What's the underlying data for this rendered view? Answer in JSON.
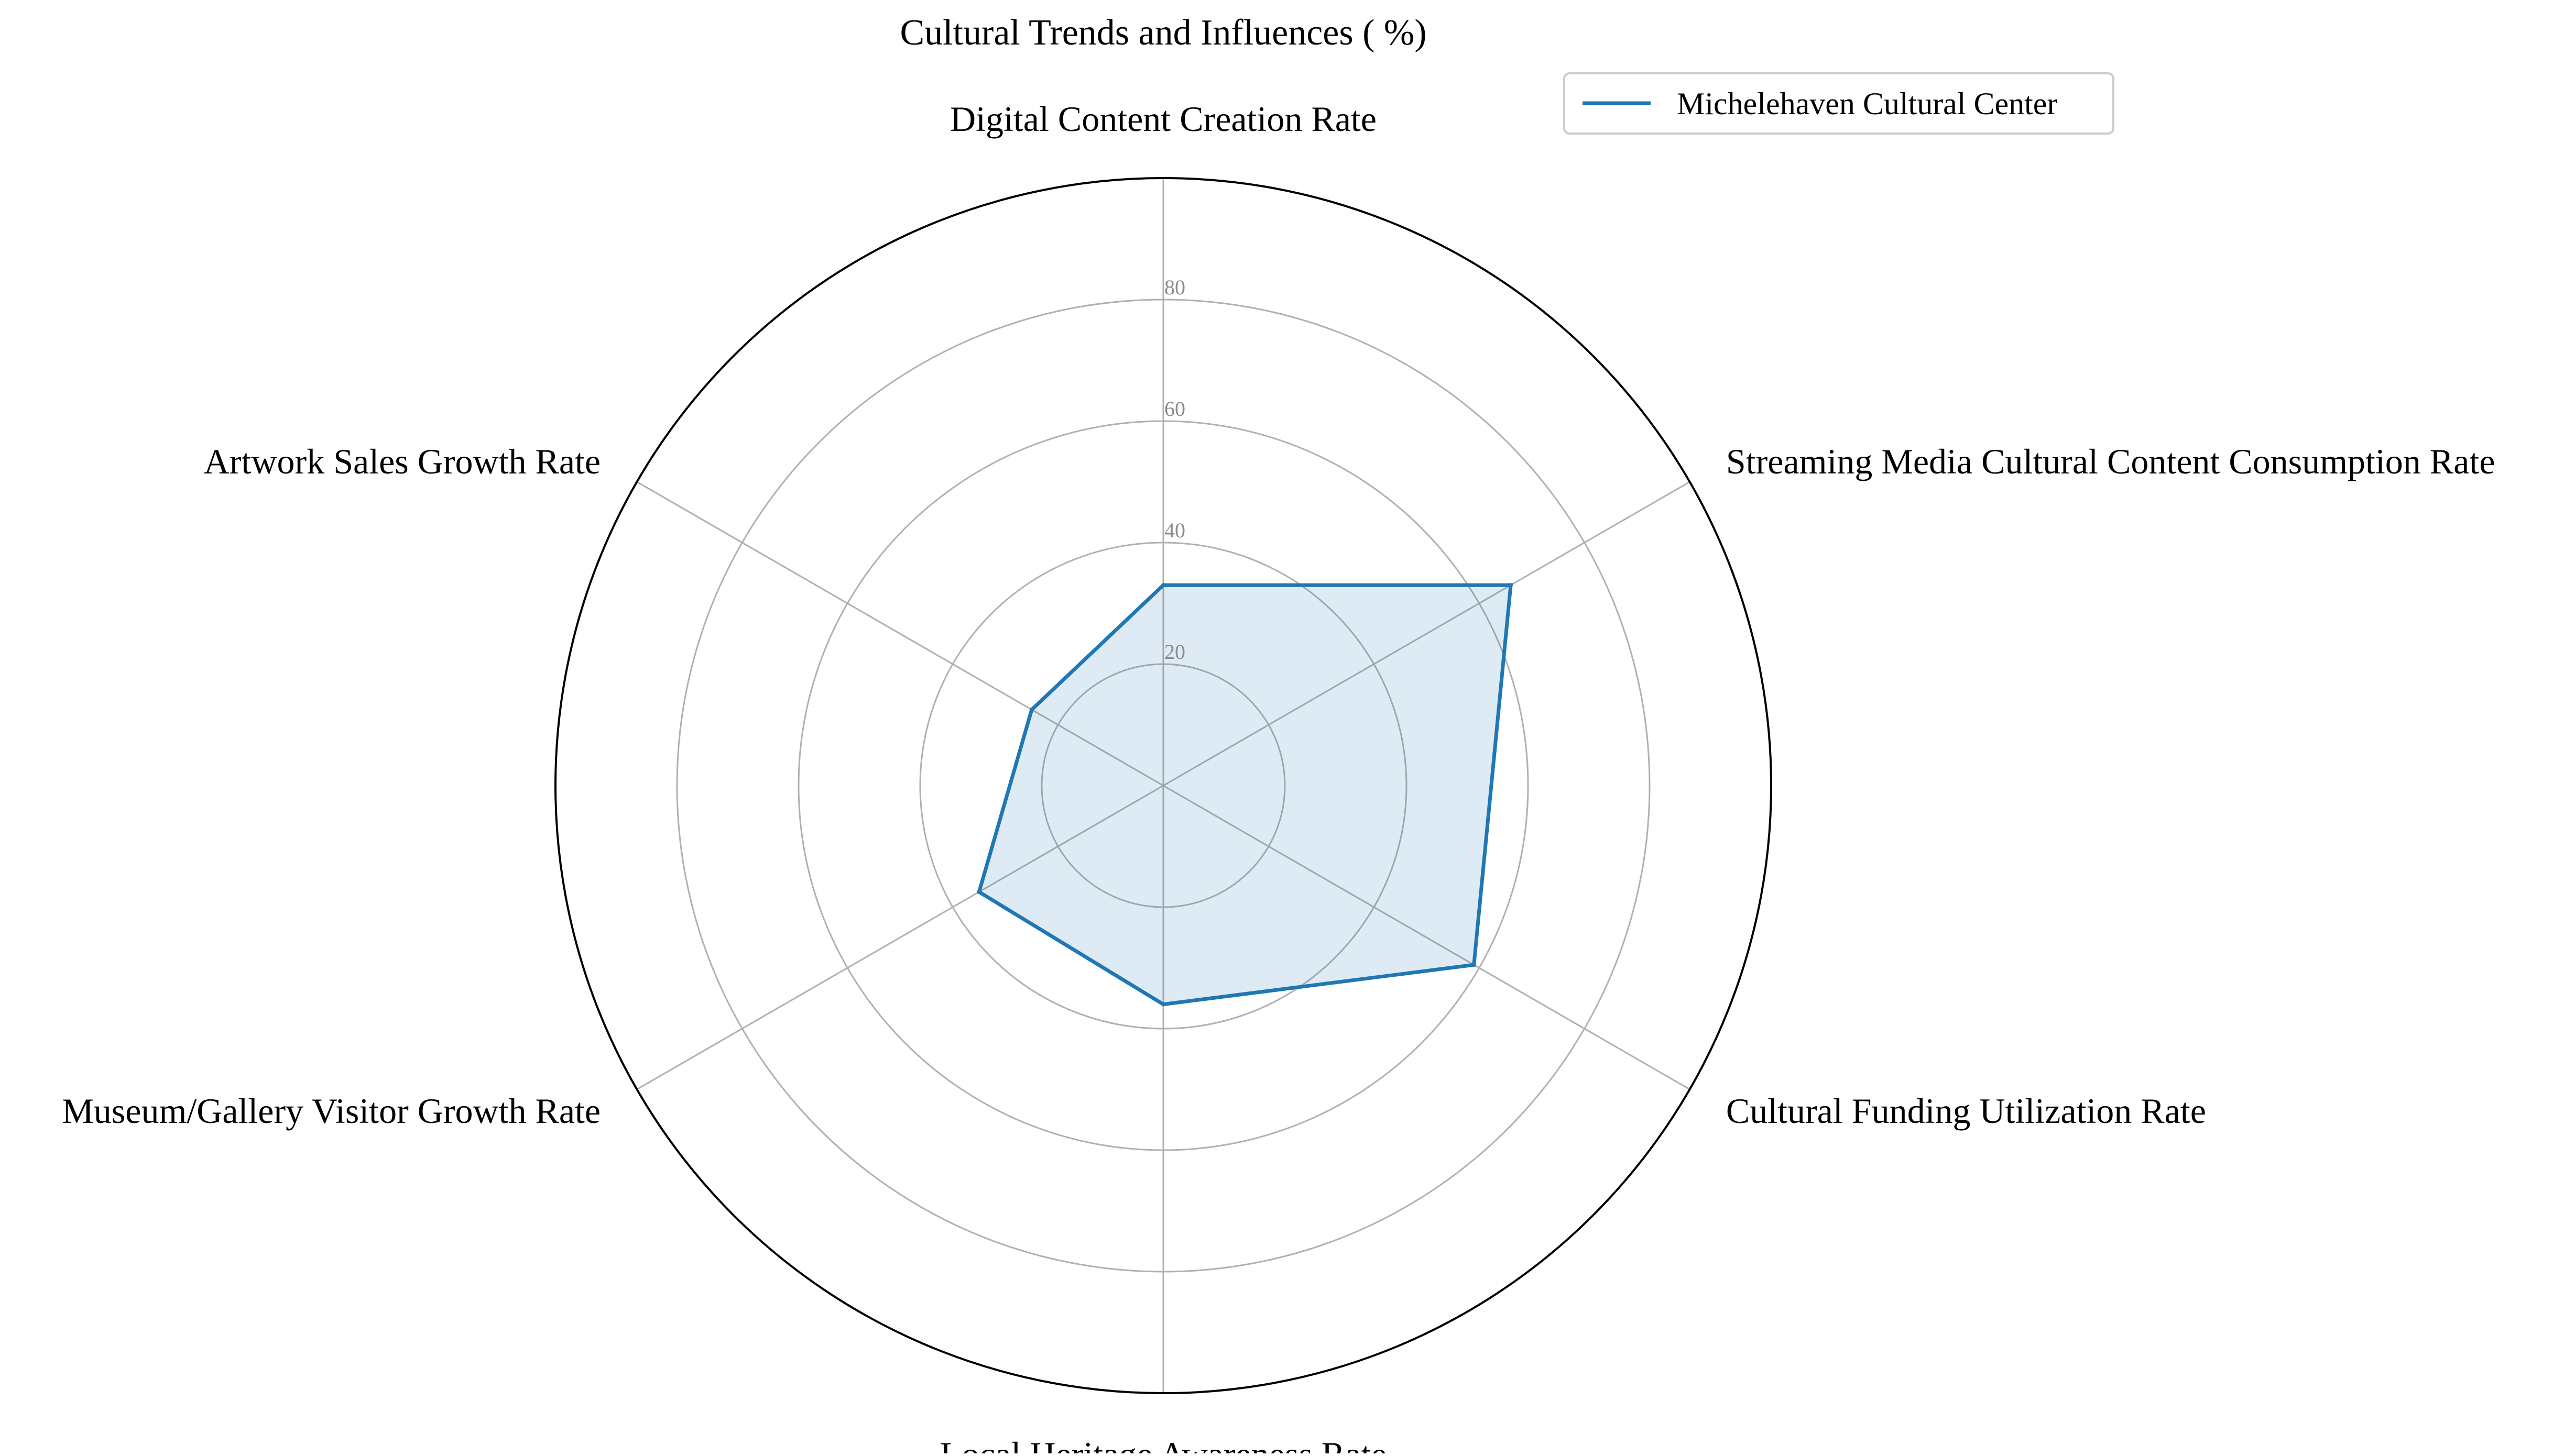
{
  "chart_data": {
    "type": "radar",
    "title": "Cultural Trends and Influences ( %)",
    "categories": [
      "Digital Content Creation Rate",
      "Streaming Media Cultural Content Consumption Rate",
      "Cultural Funding Utilization Rate",
      "Local Heritage Awareness Rate",
      "Museum/Gallery Visitor Growth Rate",
      "Artwork Sales Growth Rate"
    ],
    "series": [
      {
        "name": "Michelehaven Cultural Center",
        "values": [
          33,
          66,
          59,
          36,
          35,
          25
        ],
        "color": "#1f77b4"
      }
    ],
    "r_ticks": [
      20,
      40,
      60,
      80
    ],
    "r_max": 100,
    "grid": true,
    "legend": "top-right"
  }
}
